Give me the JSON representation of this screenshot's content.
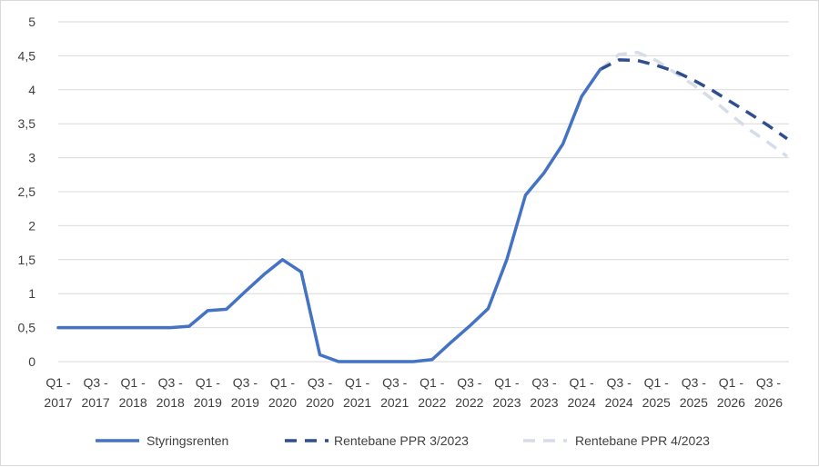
{
  "chart_data": {
    "type": "line",
    "title": "",
    "xlabel": "",
    "ylabel": "",
    "ylim": [
      0,
      5
    ],
    "y_ticks": [
      "0",
      "0,5",
      "1",
      "1,5",
      "2",
      "2,5",
      "3",
      "3,5",
      "4",
      "4,5",
      "5"
    ],
    "grid": "horizontal",
    "legend_position": "bottom",
    "x_tick_labels": [
      [
        "Q1 -",
        "2017"
      ],
      [
        "Q3 -",
        "2017"
      ],
      [
        "Q1 -",
        "2018"
      ],
      [
        "Q3 -",
        "2018"
      ],
      [
        "Q1 -",
        "2019"
      ],
      [
        "Q3 -",
        "2019"
      ],
      [
        "Q1 -",
        "2020"
      ],
      [
        "Q3 -",
        "2020"
      ],
      [
        "Q1 -",
        "2021"
      ],
      [
        "Q3 -",
        "2021"
      ],
      [
        "Q1 -",
        "2022"
      ],
      [
        "Q3 -",
        "2022"
      ],
      [
        "Q1 -",
        "2023"
      ],
      [
        "Q3 -",
        "2023"
      ],
      [
        "Q1 -",
        "2024"
      ],
      [
        "Q3 -",
        "2024"
      ],
      [
        "Q1 -",
        "2025"
      ],
      [
        "Q3 -",
        "2025"
      ],
      [
        "Q1 -",
        "2026"
      ],
      [
        "Q3 -",
        "2026"
      ]
    ],
    "n_points": 40,
    "series": [
      {
        "name": "Styringsrenten",
        "color": "#4472c4",
        "dash": "solid",
        "start_index": 0,
        "values": [
          0.5,
          0.5,
          0.5,
          0.5,
          0.5,
          0.5,
          0.5,
          0.52,
          0.75,
          0.77,
          1.03,
          1.28,
          1.5,
          1.32,
          0.1,
          0.0,
          0.0,
          0.0,
          0.0,
          0.0,
          0.03,
          0.28,
          0.52,
          0.78,
          1.5,
          2.45,
          2.78,
          3.2,
          3.9,
          4.3
        ]
      },
      {
        "name": "Rentebane PPR 3/2023",
        "color": "#2e4e8e",
        "dash": "dashed",
        "start_index": 29,
        "values": [
          4.3,
          4.44,
          4.43,
          4.36,
          4.27,
          4.14,
          3.99,
          3.82,
          3.65,
          3.47,
          3.28
        ]
      },
      {
        "name": "Rentebane PPR 4/2023",
        "color": "#d6dcea",
        "dash": "dashed",
        "start_index": 29,
        "values": [
          4.3,
          4.52,
          4.55,
          4.43,
          4.25,
          4.07,
          3.86,
          3.63,
          3.41,
          3.22,
          3.02
        ]
      }
    ]
  }
}
